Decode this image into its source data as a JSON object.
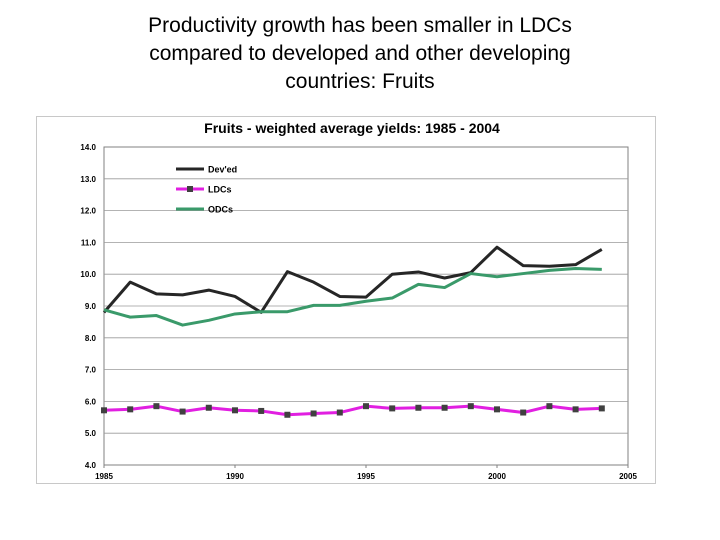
{
  "slide": {
    "title_lines": [
      "Productivity growth has been smaller in LDCs",
      "compared to developed and other developing",
      "countries: Fruits"
    ]
  },
  "chart_data": {
    "type": "line",
    "title": "Fruits - weighted average yields: 1985 - 2004",
    "xlabel": "",
    "ylabel": "",
    "x": [
      1985,
      1986,
      1987,
      1988,
      1989,
      1990,
      1991,
      1992,
      1993,
      1994,
      1995,
      1996,
      1997,
      1998,
      1999,
      2000,
      2001,
      2002,
      2003,
      2004
    ],
    "xlim": [
      1985,
      2005
    ],
    "ylim": [
      4.0,
      14.0
    ],
    "x_ticks": [
      "1985",
      "1990",
      "1995",
      "2000",
      "2005"
    ],
    "x_tick_values": [
      1985,
      1990,
      1995,
      2000,
      2005
    ],
    "y_ticks": [
      "4.0",
      "5.0",
      "6.0",
      "7.0",
      "8.0",
      "9.0",
      "10.0",
      "11.0",
      "12.0",
      "13.0",
      "14.0"
    ],
    "y_tick_values": [
      4,
      5,
      6,
      7,
      8,
      9,
      10,
      11,
      12,
      13,
      14
    ],
    "grid": "horizontal",
    "legend_position": "top-left",
    "series": [
      {
        "name": "Dev'ed",
        "color": "#262626",
        "marker": "none",
        "values": [
          8.8,
          9.75,
          9.38,
          9.35,
          9.5,
          9.3,
          8.8,
          10.08,
          9.75,
          9.3,
          9.28,
          10.0,
          10.07,
          9.88,
          10.05,
          10.85,
          10.27,
          10.25,
          10.3,
          10.78
        ]
      },
      {
        "name": "LDCs",
        "color": "#e11fe1",
        "marker": "square",
        "values": [
          5.72,
          5.75,
          5.85,
          5.68,
          5.8,
          5.72,
          5.7,
          5.58,
          5.62,
          5.65,
          5.85,
          5.78,
          5.8,
          5.8,
          5.85,
          5.75,
          5.65,
          5.85,
          5.75,
          5.78
        ]
      },
      {
        "name": "ODCs",
        "color": "#3a9a6a",
        "marker": "none",
        "values": [
          8.88,
          8.65,
          8.7,
          8.4,
          8.55,
          8.75,
          8.82,
          8.82,
          9.02,
          9.02,
          9.15,
          9.25,
          9.68,
          9.58,
          10.02,
          9.92,
          10.02,
          10.12,
          10.18,
          10.15
        ]
      }
    ]
  }
}
